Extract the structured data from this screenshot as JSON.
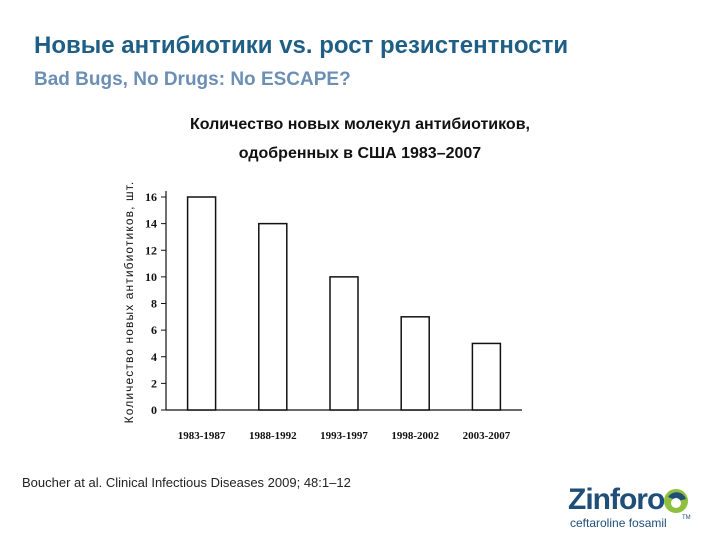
{
  "slide": {
    "title": "Новые антибиотики vs. рост резистентности",
    "subtitle": "Bad Bugs, No Drugs: No ESCAPE?",
    "chart_title_line1": "Количество новых молекул антибиотиков,",
    "chart_title_line2": "одобренных в США 1983–2007",
    "citation": "Boucher at al. Clinical Infectious Diseases 2009; 48:1–12"
  },
  "logo": {
    "brand": "Zinforo",
    "tagline": "ceftaroline fosamil",
    "tm": "TM"
  },
  "chart_data": {
    "type": "bar",
    "title": "Количество новых молекул антибиотиков, одобренных в США 1983–2007",
    "ylabel": "Количество новых антибиотиков, шт.",
    "xlabel": "",
    "categories": [
      "1983-1987",
      "1988-1992",
      "1993-1997",
      "1998-2002",
      "2003-2007"
    ],
    "values": [
      16,
      14,
      10,
      7,
      5
    ],
    "ylim": [
      0,
      16
    ],
    "yticks": [
      0,
      2,
      4,
      6,
      8,
      10,
      12,
      14,
      16
    ],
    "grid": false,
    "bar_fill": "#ffffff",
    "bar_stroke": "#111111"
  }
}
